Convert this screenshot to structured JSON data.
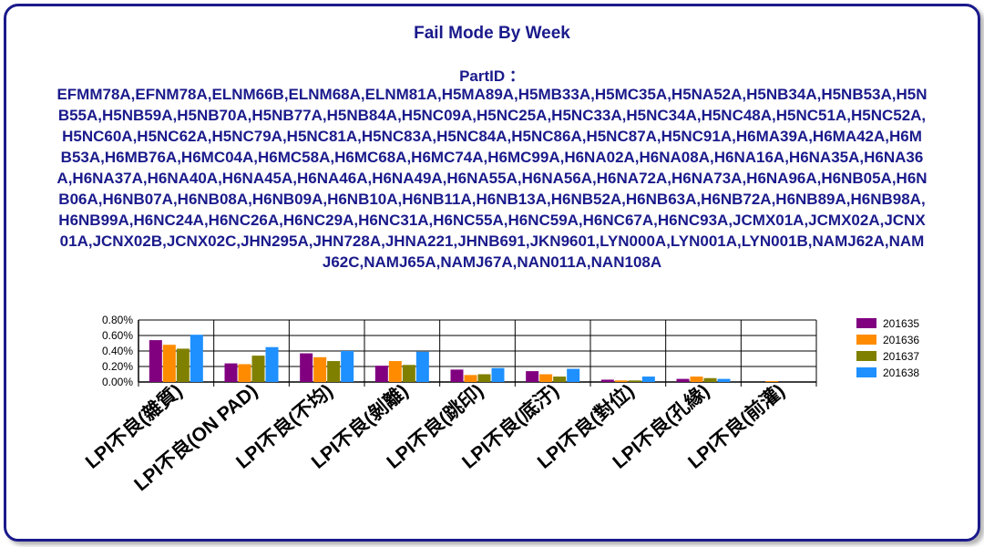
{
  "title": "Fail Mode By Week",
  "partid_label": "PartID ：",
  "partid_list": "EFMM78A,EFNM78A,ELNM66B,ELNM68A,ELNM81A,H5MA89A,H5MB33A,H5MC35A,H5NA52A,H5NB34A,H5NB53A,H5NB55A,H5NB59A,H5NB70A,H5NB77A,H5NB84A,H5NC09A,H5NC25A,H5NC33A,H5NC34A,H5NC48A,H5NC51A,H5NC52A,H5NC60A,H5NC62A,H5NC79A,H5NC81A,H5NC83A,H5NC84A,H5NC86A,H5NC87A,H5NC91A,H6MA39A,H6MA42A,H6MB53A,H6MB76A,H6MC04A,H6MC58A,H6MC68A,H6MC74A,H6MC99A,H6NA02A,H6NA08A,H6NA16A,H6NA35A,H6NA36A,H6NA37A,H6NA40A,H6NA45A,H6NA46A,H6NA49A,H6NA55A,H6NA56A,H6NA72A,H6NA73A,H6NA96A,H6NB05A,H6NB06A,H6NB07A,H6NB08A,H6NB09A,H6NB10A,H6NB11A,H6NB13A,H6NB52A,H6NB63A,H6NB72A,H6NB89A,H6NB98A,H6NB99A,H6NC24A,H6NC26A,H6NC29A,H6NC31A,H6NC55A,H6NC59A,H6NC67A,H6NC93A,JCMX01A,JCMX02A,JCNX01A,JCNX02B,JCNX02C,JHN295A,JHN728A,JHNA221,JHNB691,JKN9601,LYN000A,LYN001A,LYN001B,NAMJ62A,NAMJ62C,NAMJ65A,NAMJ67A,NAN011A,NAN108A",
  "chart_data": {
    "type": "bar",
    "title": "Fail Mode By Week",
    "categories": [
      "LPI不良(雜質)",
      "LPI不良(ON PAD)",
      "LPI不良(不均)",
      "LPI不良(剝離)",
      "LPI不良(跳印)",
      "LPI不良(底汙)",
      "LPI不良(對位)",
      "LPI不良(孔緣)",
      "LPI不良(前灌)"
    ],
    "series": [
      {
        "name": "201635",
        "color": "#800080",
        "values": [
          0.54,
          0.24,
          0.37,
          0.21,
          0.16,
          0.14,
          0.03,
          0.04,
          0.0
        ]
      },
      {
        "name": "201636",
        "color": "#ff8c00",
        "values": [
          0.48,
          0.23,
          0.32,
          0.27,
          0.09,
          0.1,
          0.02,
          0.07,
          0.01
        ]
      },
      {
        "name": "201637",
        "color": "#808000",
        "values": [
          0.43,
          0.34,
          0.27,
          0.22,
          0.1,
          0.07,
          0.02,
          0.05,
          0.0
        ]
      },
      {
        "name": "201638",
        "color": "#1e90ff",
        "values": [
          0.61,
          0.45,
          0.4,
          0.39,
          0.18,
          0.17,
          0.07,
          0.04,
          0.0
        ]
      }
    ],
    "ylim": [
      0,
      0.8
    ],
    "yticks": [
      0.0,
      0.2,
      0.4,
      0.6,
      0.8
    ],
    "ytick_labels": [
      "0.00%",
      "0.20%",
      "0.40%",
      "0.60%",
      "0.80%"
    ],
    "grid": true,
    "legend": "right"
  }
}
